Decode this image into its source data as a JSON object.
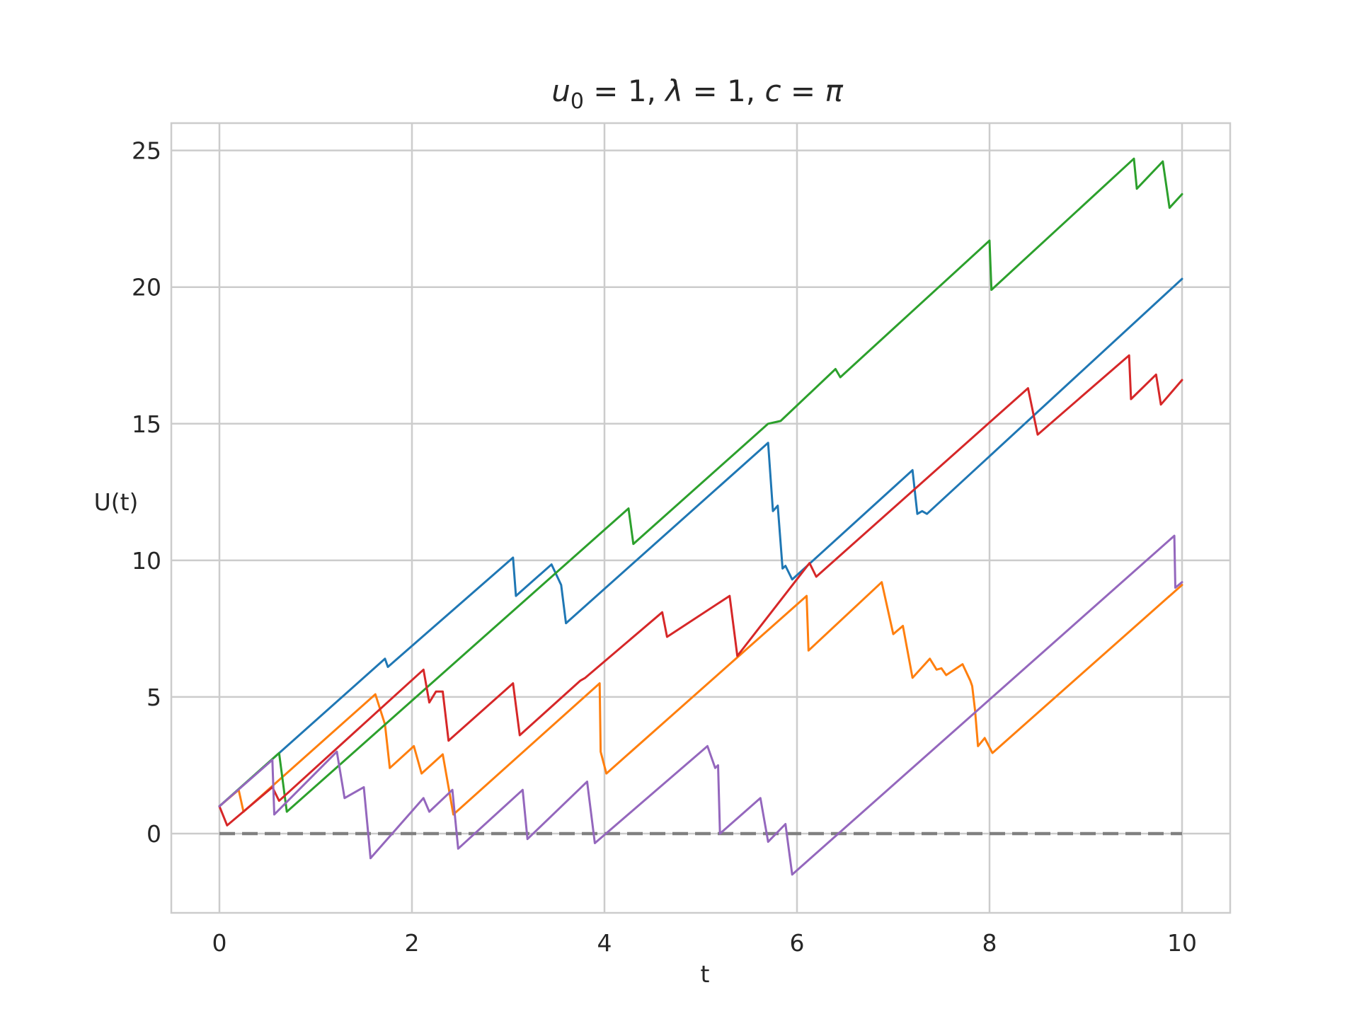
{
  "chart_data": {
    "type": "line",
    "title_parts": {
      "u": "u",
      "sub": "0",
      "rest_a": " = 1, ",
      "lambda": "λ",
      "rest_b": " = 1, ",
      "c": "c",
      "rest_c": " = ",
      "pi": "π"
    },
    "xlabel": "t",
    "ylabel": "U(t)",
    "xlim": [
      -0.5,
      10.5
    ],
    "ylim": [
      -2.9,
      26.0
    ],
    "xticks": [
      0,
      2,
      4,
      6,
      8,
      10
    ],
    "xtick_labels": [
      "0",
      "2",
      "4",
      "6",
      "8",
      "10"
    ],
    "yticks": [
      0,
      5,
      10,
      15,
      20,
      25
    ],
    "ytick_labels": [
      "0",
      "5",
      "10",
      "15",
      "20",
      "25"
    ],
    "grid": true,
    "reference_line": {
      "y": 0,
      "style": "dashed",
      "color": "#808080"
    },
    "series": [
      {
        "color": "#1f77b4",
        "points": [
          [
            0,
            1.0
          ],
          [
            1.72,
            6.4
          ],
          [
            1.75,
            6.1
          ],
          [
            3.05,
            10.1
          ],
          [
            3.08,
            8.7
          ],
          [
            3.45,
            9.85
          ],
          [
            3.55,
            9.1
          ],
          [
            3.6,
            7.7
          ],
          [
            5.7,
            14.3
          ],
          [
            5.75,
            11.8
          ],
          [
            5.8,
            12.0
          ],
          [
            5.85,
            9.7
          ],
          [
            5.88,
            9.8
          ],
          [
            5.95,
            9.3
          ],
          [
            7.2,
            13.3
          ],
          [
            7.25,
            11.7
          ],
          [
            7.3,
            11.8
          ],
          [
            7.35,
            11.7
          ],
          [
            10,
            20.3
          ]
        ]
      },
      {
        "color": "#ff7f0e",
        "points": [
          [
            0,
            1.0
          ],
          [
            0.2,
            1.6
          ],
          [
            0.25,
            0.8
          ],
          [
            1.62,
            5.1
          ],
          [
            1.72,
            4.0
          ],
          [
            1.77,
            2.4
          ],
          [
            2.02,
            3.2
          ],
          [
            2.1,
            2.2
          ],
          [
            2.32,
            2.9
          ],
          [
            2.43,
            0.7
          ],
          [
            3.95,
            5.5
          ],
          [
            3.96,
            3.0
          ],
          [
            4.02,
            2.2
          ],
          [
            6.1,
            8.7
          ],
          [
            6.12,
            6.7
          ],
          [
            6.88,
            9.2
          ],
          [
            7.0,
            7.3
          ],
          [
            7.1,
            7.6
          ],
          [
            7.2,
            5.7
          ],
          [
            7.38,
            6.4
          ],
          [
            7.45,
            6.0
          ],
          [
            7.5,
            6.05
          ],
          [
            7.55,
            5.8
          ],
          [
            7.72,
            6.2
          ],
          [
            7.8,
            5.6
          ],
          [
            7.82,
            5.4
          ],
          [
            7.85,
            4.5
          ],
          [
            7.88,
            3.2
          ],
          [
            7.95,
            3.5
          ],
          [
            8.03,
            2.95
          ],
          [
            10,
            9.1
          ]
        ]
      },
      {
        "color": "#2ca02c",
        "points": [
          [
            0,
            1.0
          ],
          [
            0.62,
            2.95
          ],
          [
            0.7,
            0.8
          ],
          [
            4.25,
            11.9
          ],
          [
            4.3,
            10.6
          ],
          [
            5.7,
            15.0
          ],
          [
            5.83,
            15.1
          ],
          [
            6.4,
            17.0
          ],
          [
            6.45,
            16.7
          ],
          [
            8.0,
            21.7
          ],
          [
            8.02,
            19.9
          ],
          [
            9.5,
            24.7
          ],
          [
            9.53,
            23.6
          ],
          [
            9.8,
            24.6
          ],
          [
            9.87,
            22.9
          ],
          [
            10,
            23.4
          ]
        ]
      },
      {
        "color": "#d62728",
        "points": [
          [
            0,
            1.0
          ],
          [
            0.08,
            0.3
          ],
          [
            0.55,
            1.7
          ],
          [
            0.62,
            1.2
          ],
          [
            2.12,
            6.0
          ],
          [
            2.18,
            4.8
          ],
          [
            2.25,
            5.2
          ],
          [
            2.32,
            5.2
          ],
          [
            2.38,
            3.4
          ],
          [
            3.05,
            5.5
          ],
          [
            3.12,
            3.6
          ],
          [
            3.75,
            5.6
          ],
          [
            3.8,
            5.7
          ],
          [
            4.6,
            8.1
          ],
          [
            4.65,
            7.2
          ],
          [
            5.3,
            8.7
          ],
          [
            5.38,
            6.5
          ],
          [
            6.13,
            9.9
          ],
          [
            6.2,
            9.4
          ],
          [
            8.4,
            16.3
          ],
          [
            8.5,
            14.6
          ],
          [
            9.45,
            17.5
          ],
          [
            9.47,
            15.9
          ],
          [
            9.73,
            16.8
          ],
          [
            9.78,
            15.7
          ],
          [
            10,
            16.6
          ]
        ]
      },
      {
        "color": "#9467bd",
        "points": [
          [
            0,
            1.0
          ],
          [
            0.55,
            2.7
          ],
          [
            0.57,
            0.7
          ],
          [
            1.22,
            3.0
          ],
          [
            1.3,
            1.3
          ],
          [
            1.5,
            1.7
          ],
          [
            1.57,
            -0.9
          ],
          [
            2.12,
            1.3
          ],
          [
            2.18,
            0.8
          ],
          [
            2.42,
            1.6
          ],
          [
            2.48,
            -0.55
          ],
          [
            3.15,
            1.6
          ],
          [
            3.2,
            -0.2
          ],
          [
            3.82,
            1.9
          ],
          [
            3.9,
            -0.35
          ],
          [
            5.07,
            3.2
          ],
          [
            5.15,
            2.4
          ],
          [
            5.18,
            2.5
          ],
          [
            5.2,
            0.0
          ],
          [
            5.62,
            1.3
          ],
          [
            5.7,
            -0.3
          ],
          [
            5.88,
            0.35
          ],
          [
            5.95,
            -1.5
          ],
          [
            9.92,
            10.9
          ],
          [
            9.93,
            9.0
          ],
          [
            10,
            9.2
          ]
        ]
      }
    ]
  }
}
